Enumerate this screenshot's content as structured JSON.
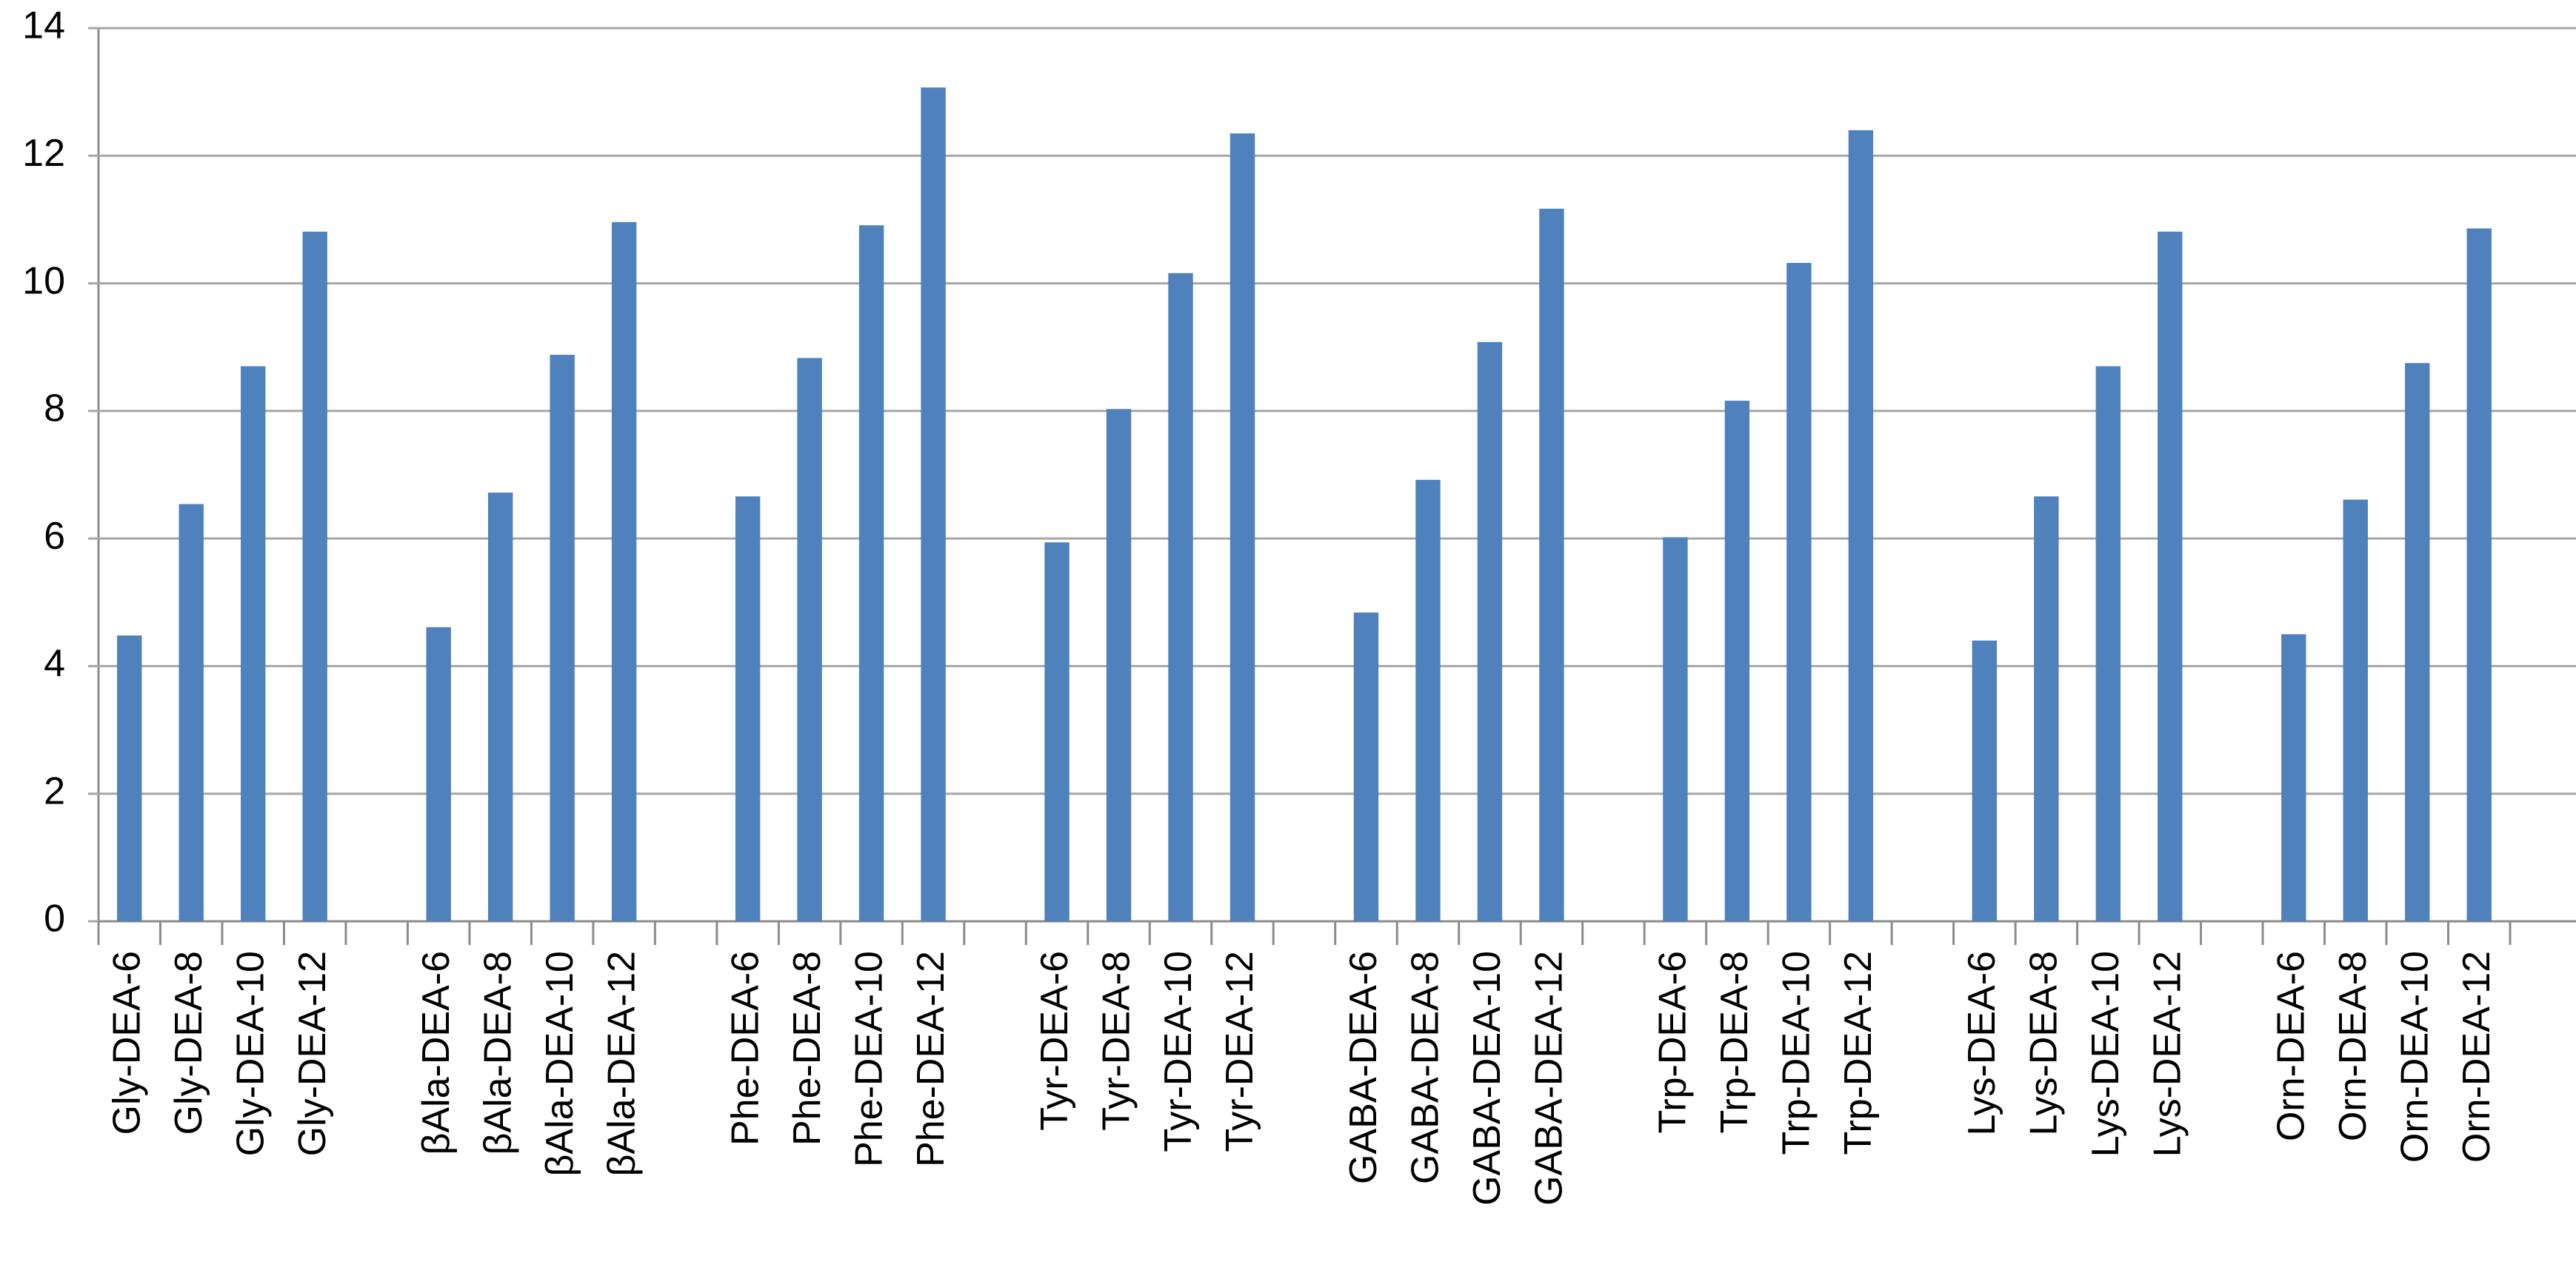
{
  "chart_data": {
    "type": "bar",
    "categories": [
      "Gly-DEA-6",
      "Gly-DEA-8",
      "Gly-DEA-10",
      "Gly-DEA-12",
      null,
      "βAla-DEA-6",
      "βAla-DEA-8",
      "βAla-DEA-10",
      "βAla-DEA-12",
      null,
      "Phe-DEA-6",
      "Phe-DEA-8",
      "Phe-DEA-10",
      "Phe-DEA-12",
      null,
      "Tyr-DEA-6",
      "Tyr-DEA-8",
      "Tyr-DEA-10",
      "Tyr-DEA-12",
      null,
      "GABA-DEA-6",
      "GABA-DEA-8",
      "GABA-DEA-10",
      "GABA-DEA-12",
      null,
      "Trp-DEA-6",
      "Trp-DEA-8",
      "Trp-DEA-10",
      "Trp-DEA-12",
      null,
      "Lys-DEA-6",
      "Lys-DEA-8",
      "Lys-DEA-10",
      "Lys-DEA-12",
      null,
      "Orn-DEA-6",
      "Orn-DEA-8",
      "Orn-DEA-10",
      "Orn-DEA-12"
    ],
    "values": [
      4.48,
      6.54,
      8.7,
      10.81,
      null,
      4.61,
      6.72,
      8.88,
      10.96,
      null,
      6.66,
      8.83,
      10.91,
      13.07,
      null,
      5.94,
      8.03,
      10.16,
      12.35,
      null,
      4.84,
      6.92,
      9.08,
      11.17,
      null,
      6.02,
      8.16,
      10.32,
      12.4,
      null,
      4.4,
      6.66,
      8.7,
      10.81,
      null,
      4.5,
      6.61,
      8.75,
      10.86
    ],
    "color": "#4f81bd",
    "ylim": [
      0,
      14
    ],
    "yticks": [
      0,
      2,
      4,
      6,
      8,
      10,
      12,
      14
    ],
    "grid": true
  }
}
